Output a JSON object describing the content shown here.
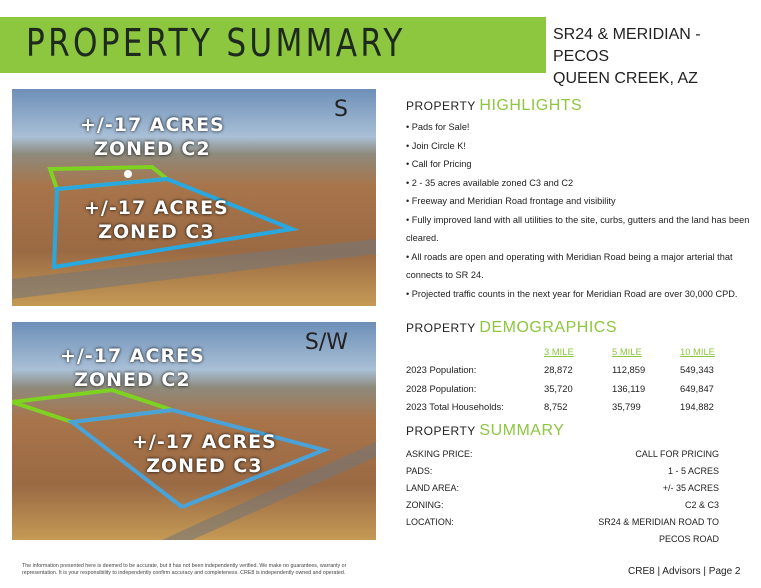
{
  "header": {
    "title": "PROPERTY SUMMARY",
    "address_line1": "SR24 & MERIDIAN - PECOS",
    "address_line2": "QUEEN CREEK, AZ",
    "accent": "#8dc63f"
  },
  "photos": [
    {
      "direction": "S",
      "label_c2": [
        "+/-17 ACRES",
        "ZONED C2"
      ],
      "label_c3": [
        "+/-17 ACRES",
        "ZONED C3"
      ]
    },
    {
      "direction": "S/W",
      "label_c2": [
        "+/-17 ACRES",
        "ZONED C2"
      ],
      "label_c3": [
        "+/-17 ACRES",
        "ZONED C3"
      ]
    }
  ],
  "highlights": {
    "prefix": "PROPERTY",
    "title": "HIGHLIGHTS",
    "items": [
      "• Pads for Sale!",
      "• Join Circle K!",
      "• Call for Pricing",
      "• 2 - 35 acres available zoned C3 and C2",
      "• Freeway and Meridian Road frontage and visibility",
      "• Fully improved land with all utilities to the site, curbs, gutters and the land has been cleared.",
      "• All roads are open and operating with Meridian Road being a major arterial that connects to SR 24.",
      "• Projected traffic counts in the next year for Meridian Road are over 30,000 CPD."
    ]
  },
  "demographics": {
    "prefix": "PROPERTY",
    "title": "DEMOGRAPHICS",
    "columns": [
      "3 MILE",
      "5 MILE",
      "10 MILE"
    ],
    "rows": [
      {
        "label": "2023 Population:",
        "values": [
          "28,872",
          "112,859",
          "549,343"
        ]
      },
      {
        "label": "2028 Population:",
        "values": [
          "35,720",
          "136,119",
          "649,847"
        ]
      },
      {
        "label": "2023 Total Households:",
        "values": [
          "8,752",
          "35,799",
          "194,882"
        ]
      }
    ]
  },
  "summary": {
    "prefix": "PROPERTY",
    "title": "SUMMARY",
    "rows": [
      {
        "label": "ASKING PRICE:",
        "value": "CALL FOR PRICING"
      },
      {
        "label": "PADS:",
        "value": "1 - 5  ACRES"
      },
      {
        "label": "LAND AREA:",
        "value": "+/- 35 ACRES"
      },
      {
        "label": "ZONING:",
        "value": "C2 & C3"
      },
      {
        "label": "LOCATION:",
        "value": "SR24 & MERIDIAN ROAD TO"
      },
      {
        "label": "",
        "value": "PECOS ROAD"
      }
    ]
  },
  "disclaimer": "The information presented here is deemed to be accurate, but it has not been independently verified. We make no guarantees, warranty or representation. It is your responsibility to independently confirm accuracy and completeness. CRE8 is independently owned and operated.",
  "footer": "CRE8  | Advisors  | Page 2"
}
